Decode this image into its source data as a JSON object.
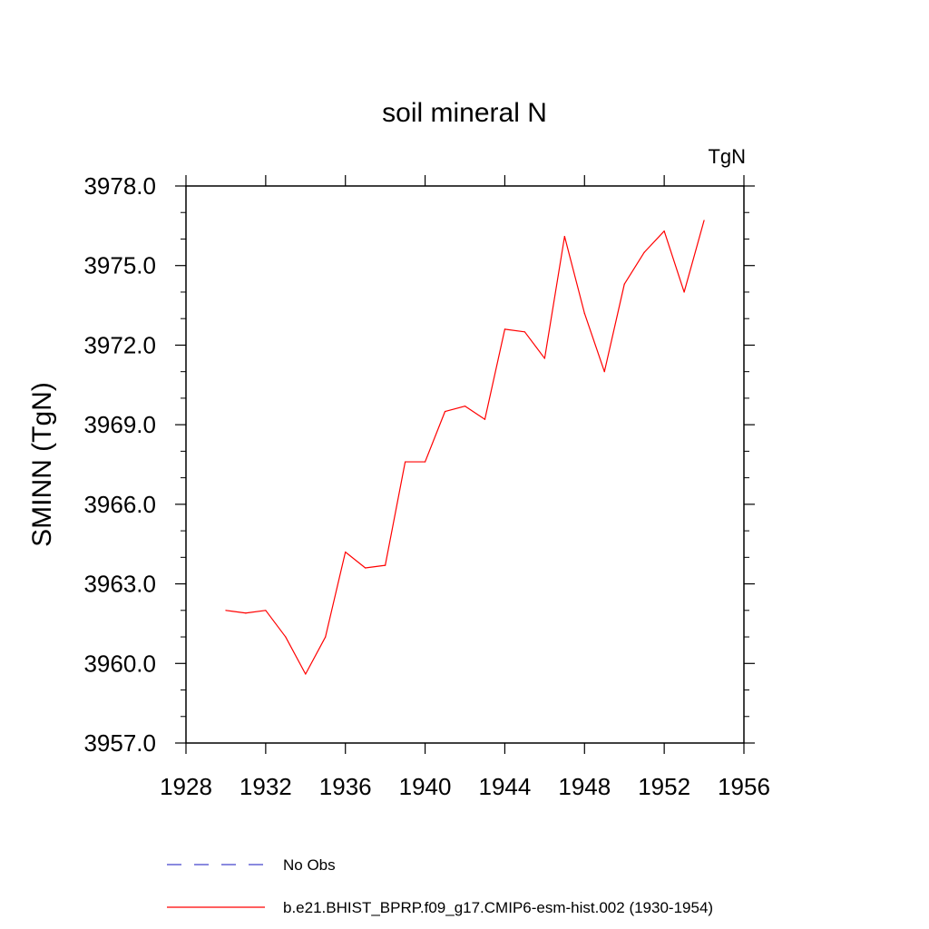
{
  "chart_data": {
    "type": "line",
    "title": "soil mineral N",
    "units_label": "TgN",
    "ylabel": "SMINN  (TgN)",
    "xlabel": "",
    "xlim": [
      1928,
      1956
    ],
    "ylim": [
      3957.0,
      3978.0
    ],
    "x_ticks": [
      1928,
      1932,
      1936,
      1940,
      1944,
      1948,
      1952,
      1956
    ],
    "y_ticks": [
      "3957.0",
      "3960.0",
      "3963.0",
      "3966.0",
      "3969.0",
      "3972.0",
      "3975.0",
      "3978.0"
    ],
    "series": [
      {
        "name": "b.e21.BHIST_BPRP.f09_g17.CMIP6-esm-hist.002 (1930-1954)",
        "color": "#ff0000",
        "style": "solid",
        "x": [
          1930,
          1931,
          1932,
          1933,
          1934,
          1935,
          1936,
          1937,
          1938,
          1939,
          1940,
          1941,
          1942,
          1943,
          1944,
          1945,
          1946,
          1947,
          1948,
          1949,
          1950,
          1951,
          1952,
          1953,
          1954
        ],
        "values": [
          3962.0,
          3961.9,
          3962.0,
          3961.0,
          3959.6,
          3961.0,
          3964.2,
          3963.6,
          3963.7,
          3967.6,
          3967.6,
          3969.5,
          3969.7,
          3969.2,
          3972.6,
          3972.5,
          3971.5,
          3976.1,
          3973.2,
          3971.0,
          3974.3,
          3975.5,
          3976.3,
          3974.0,
          3976.7
        ]
      }
    ],
    "legend": [
      {
        "label": "No Obs",
        "color": "#4444cc",
        "style": "dashed"
      },
      {
        "label": "b.e21.BHIST_BPRP.f09_g17.CMIP6-esm-hist.002 (1930-1954)",
        "color": "#ff0000",
        "style": "solid"
      }
    ]
  }
}
